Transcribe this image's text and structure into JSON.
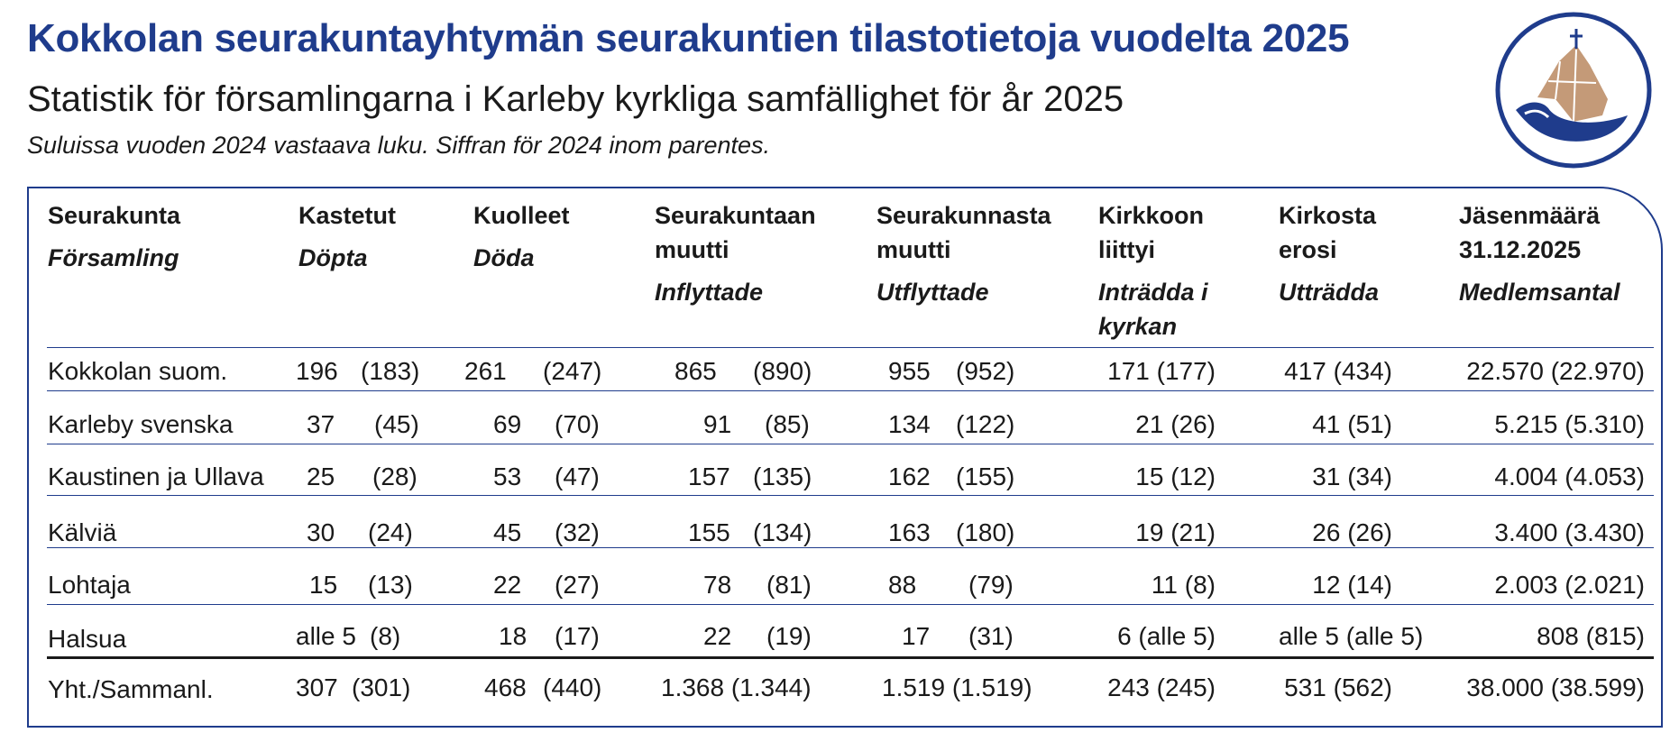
{
  "title_fi": "Kokkolan seurakuntayhtymän seurakuntien tilastotietoja vuodelta 2025",
  "title_sv": "Statistik för församlingarna i Karleby kyrkliga samfällighet för år 2025",
  "note": "Suluissa vuoden 2024 vastaava luku. Siffran för 2024 inom parentes.",
  "colors": {
    "brand_blue": "#1f3c8c",
    "logo_brown": "#c49a78"
  },
  "headers": [
    {
      "fi": "Seurakunta",
      "sv": "Församling"
    },
    {
      "fi": "Kastetut",
      "sv": "Döpta"
    },
    {
      "fi": "Kuolleet",
      "sv": "Döda"
    },
    {
      "fi": "Seurakuntaan muutti",
      "sv": "Inflyttade"
    },
    {
      "fi": "Seurakunnasta muutti",
      "sv": "Utflyttade"
    },
    {
      "fi": "Kirkkoon liittyi",
      "sv": "Inträdda i kyrkan"
    },
    {
      "fi": "Kirkosta erosi",
      "sv": "Utträdda"
    },
    {
      "fi": "Jäsenmäärä 31.12.2025",
      "sv": "Medlemsantal"
    }
  ],
  "rows": [
    {
      "name": "Kokkolan suom.",
      "values": [
        "196",
        "(183)",
        "261",
        "(247)",
        "865",
        "(890)",
        "955",
        "(952)",
        "171  (177)",
        "417 (434)",
        "22.570 (22.970)"
      ]
    },
    {
      "name": "Karleby svenska",
      "values": [
        "37",
        "(45)",
        "69",
        "(70)",
        "91",
        "(85)",
        "134",
        "(122)",
        "21 (26)",
        "41 (51)",
        "5.215 (5.310)"
      ]
    },
    {
      "name": "Kaustinen ja Ullava",
      "values": [
        "25",
        "(28)",
        "53",
        "(47)",
        "157",
        "(135)",
        "162",
        "(155)",
        "15 (12)",
        "31 (34)",
        "4.004 (4.053)"
      ]
    },
    {
      "name": "Kälviä",
      "values": [
        "30",
        "(24)",
        "45",
        "(32)",
        "155",
        "(134)",
        "163",
        "(180)",
        "19 (21)",
        "26 (26)",
        "3.400 (3.430)"
      ]
    },
    {
      "name": "Lohtaja",
      "values": [
        "15",
        "(13)",
        "22",
        "(27)",
        "78",
        "(81)",
        "88",
        "(79)",
        "11 (8)",
        "12 (14)",
        "2.003 (2.021)"
      ]
    },
    {
      "name": "Halsua",
      "values": [
        "alle 5",
        "(8)",
        "18",
        "(17)",
        "22",
        "(19)",
        "17",
        "(31)",
        "6  (alle 5)",
        "alle 5 (alle 5)",
        "808 (815)"
      ]
    }
  ],
  "total": {
    "name": "Yht./Sammanl.",
    "values": [
      "307",
      "(301)",
      "468",
      "(440)",
      "1.368 (1.344)",
      "1.519 (1.519)",
      "243 (245)",
      "531 (562)",
      "38.000 (38.599)"
    ]
  }
}
